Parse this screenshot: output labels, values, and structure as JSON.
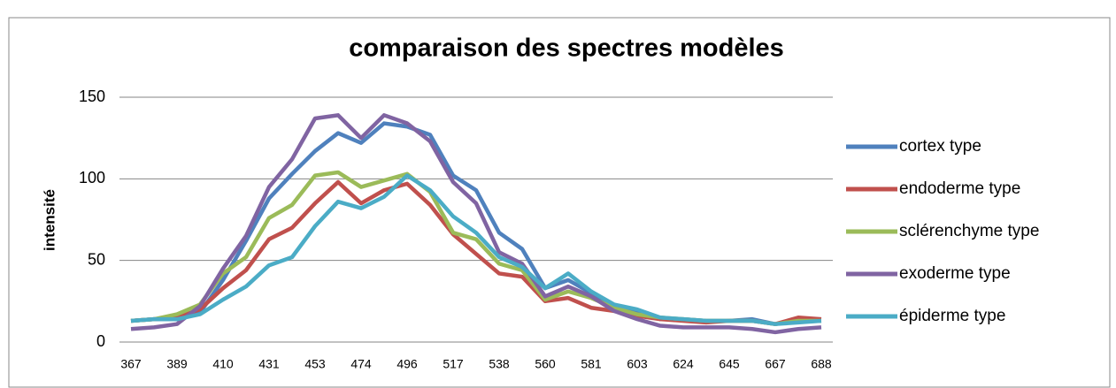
{
  "chart_data": {
    "type": "line",
    "title": "comparaison des spectres modèles",
    "y_label": "intensité",
    "categories": [
      367,
      null,
      389,
      null,
      410,
      null,
      431,
      null,
      453,
      null,
      474,
      null,
      496,
      null,
      517,
      null,
      538,
      null,
      560,
      null,
      581,
      null,
      603,
      null,
      624,
      null,
      645,
      null,
      667,
      null,
      688
    ],
    "series": [
      {
        "name": "cortex type",
        "color": "#4f81bd",
        "values": [
          13,
          14,
          14,
          18,
          38,
          62,
          88,
          103,
          117,
          128,
          122,
          134,
          132,
          127,
          102,
          93,
          67,
          57,
          33,
          38,
          30,
          22,
          18,
          14,
          14,
          13,
          13,
          14,
          11,
          13,
          13
        ]
      },
      {
        "name": "endoderme type",
        "color": "#c0504d",
        "values": [
          13,
          14,
          15,
          20,
          33,
          44,
          63,
          70,
          85,
          98,
          85,
          93,
          97,
          84,
          66,
          54,
          42,
          40,
          25,
          27,
          21,
          19,
          16,
          14,
          13,
          12,
          13,
          13,
          11,
          15,
          14
        ]
      },
      {
        "name": "sclérenchyme type",
        "color": "#9bbb59",
        "values": [
          13,
          14,
          17,
          23,
          42,
          52,
          76,
          84,
          102,
          104,
          95,
          99,
          103,
          92,
          67,
          63,
          48,
          44,
          26,
          31,
          27,
          21,
          17,
          15,
          14,
          13,
          13,
          13,
          11,
          13,
          13
        ]
      },
      {
        "name": "exoderme type",
        "color": "#8064a2",
        "values": [
          8,
          9,
          11,
          22,
          45,
          65,
          95,
          112,
          137,
          139,
          125,
          139,
          134,
          123,
          98,
          85,
          55,
          48,
          28,
          34,
          28,
          19,
          14,
          10,
          9,
          9,
          9,
          8,
          6,
          8,
          9
        ]
      },
      {
        "name": "épiderme type",
        "color": "#4bacc6",
        "values": [
          13,
          14,
          14,
          17,
          26,
          34,
          47,
          52,
          71,
          86,
          82,
          89,
          102,
          93,
          77,
          67,
          52,
          46,
          33,
          42,
          31,
          23,
          20,
          15,
          14,
          13,
          13,
          13,
          11,
          12,
          13
        ]
      }
    ],
    "ylim": [
      0,
      150
    ],
    "yticks": [
      0,
      50,
      100,
      150
    ],
    "grid": true,
    "legend": "right"
  }
}
